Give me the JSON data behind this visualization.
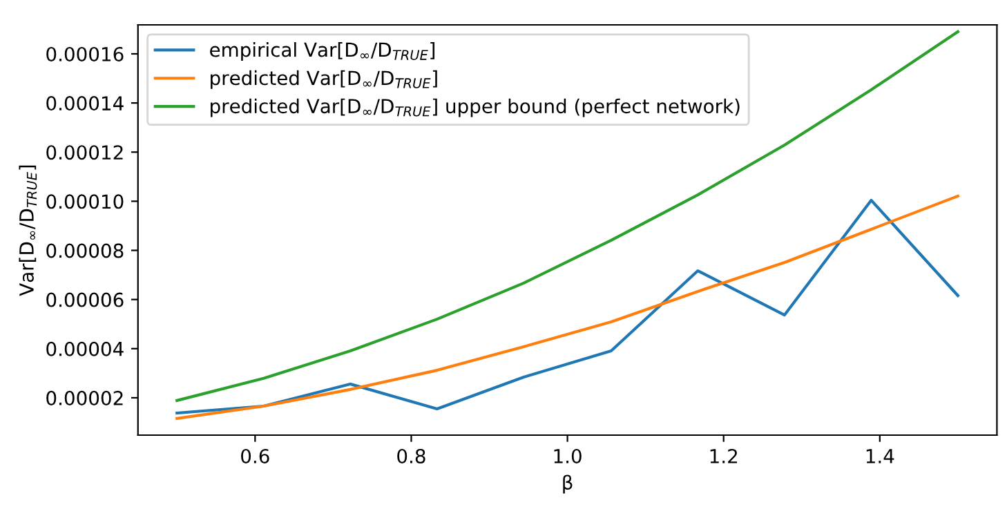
{
  "chart_data": {
    "type": "line",
    "xlabel": "β",
    "ylabel": "Var[D$_{∞}$/D$_{TRUE}$]",
    "x": [
      0.5,
      0.611,
      0.722,
      0.833,
      0.944,
      1.056,
      1.167,
      1.278,
      1.389,
      1.5
    ],
    "series": [
      {
        "name": "empirical Var[D$_{∞}$/D$_{TRUE}$]",
        "color": "#1f77b4",
        "values": [
          1.38e-05,
          1.66e-05,
          2.56e-05,
          1.55e-05,
          2.84e-05,
          3.91e-05,
          7.17e-05,
          5.37e-05,
          0.0001004,
          6.16e-05
        ]
      },
      {
        "name": "predicted Var[D$_{∞}$/D$_{TRUE}$]",
        "color": "#ff7f0e",
        "values": [
          1.16e-05,
          1.66e-05,
          2.34e-05,
          3.12e-05,
          4.08e-05,
          5.09e-05,
          6.33e-05,
          7.51e-05,
          8.86e-05,
          0.0001021
        ]
      },
      {
        "name": "predicted Var[D$_{∞}$/D$_{TRUE}$] upper bound (perfect network)",
        "color": "#2ca02c",
        "values": [
          1.89e-05,
          2.79e-05,
          3.91e-05,
          5.2e-05,
          6.67e-05,
          8.41e-05,
          0.0001026,
          0.0001229,
          0.0001454,
          0.000169
        ]
      }
    ],
    "xlim": [
      0.45,
      1.55
    ],
    "xticks": [
      0.6,
      0.8,
      {
        "value": 1,
        "label": "1.0"
      },
      1.2,
      1.4
    ],
    "ylim": [
      4.8e-06,
      0.0001718
    ],
    "yticks": [
      {
        "value": 2e-05,
        "label": "0.00002"
      },
      {
        "value": 4e-05,
        "label": "0.00004"
      },
      {
        "value": 6e-05,
        "label": "0.00006"
      },
      {
        "value": 8e-05,
        "label": "0.00008"
      },
      {
        "value": 0.0001,
        "label": "0.00010"
      },
      {
        "value": 0.00012,
        "label": "0.00012"
      },
      {
        "value": 0.00014,
        "label": "0.00014"
      },
      {
        "value": 0.00016,
        "label": "0.00016"
      }
    ],
    "legend": "top left",
    "grid": false,
    "line_style": "solid",
    "marker": "none"
  }
}
